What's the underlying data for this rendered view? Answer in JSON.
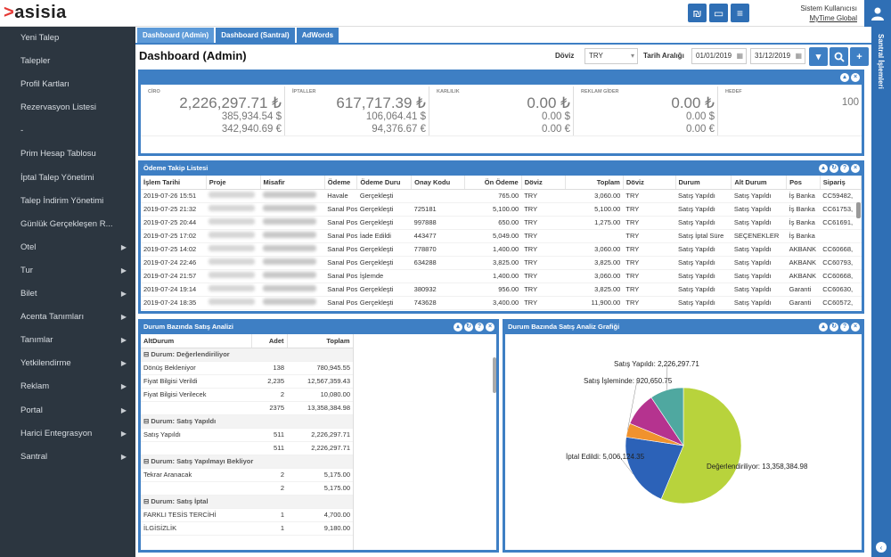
{
  "brand": {
    "chevron": ">",
    "name": "asisia"
  },
  "user": {
    "line1": "Sistem Kullanıcısı",
    "line2": "MyTime Global"
  },
  "top_icons": [
    "currency-icon",
    "monitor-icon",
    "menu-icon"
  ],
  "sidebar": {
    "items": [
      {
        "label": "Yeni Talep",
        "arrow": false
      },
      {
        "label": "Talepler",
        "arrow": false
      },
      {
        "label": "Profil Kartları",
        "arrow": false
      },
      {
        "label": "Rezervasyon Listesi",
        "arrow": false
      },
      {
        "label": "-",
        "arrow": false
      },
      {
        "label": "Prim Hesap Tablosu",
        "arrow": false
      },
      {
        "label": "İptal Talep Yönetimi",
        "arrow": false
      },
      {
        "label": "Talep İndirim Yönetimi",
        "arrow": false
      },
      {
        "label": "Günlük Gerçekleşen R...",
        "arrow": false
      },
      {
        "label": "Otel",
        "arrow": true
      },
      {
        "label": "Tur",
        "arrow": true
      },
      {
        "label": "Bilet",
        "arrow": true
      },
      {
        "label": "Acenta Tanımları",
        "arrow": true
      },
      {
        "label": "Tanımlar",
        "arrow": true
      },
      {
        "label": "Yetkilendirme",
        "arrow": true
      },
      {
        "label": "Reklam",
        "arrow": true
      },
      {
        "label": "Portal",
        "arrow": true
      },
      {
        "label": "Harici Entegrasyon",
        "arrow": true
      },
      {
        "label": "Santral",
        "arrow": true
      }
    ]
  },
  "right_strip": {
    "label": "Santral İşlemleri"
  },
  "tabs": [
    {
      "label": "Dashboard (Admin)",
      "active": true
    },
    {
      "label": "Dashboard (Santral)",
      "active": false
    },
    {
      "label": "AdWords",
      "active": false
    }
  ],
  "page_title": "Dashboard (Admin)",
  "filters": {
    "currency_label": "Döviz",
    "currency_value": "TRY",
    "date_label": "Tarih Aralığı",
    "date_from": "01/01/2019",
    "date_to": "31/12/2019"
  },
  "kpis": [
    {
      "label": "CİRO",
      "v1": "2,226,297.71 ₺",
      "v2": "385,934.54 $",
      "v3": "342,940.69 €"
    },
    {
      "label": "İPTALLER",
      "v1": "617,717.39 ₺",
      "v2": "106,064.41 $",
      "v3": "94,376.67 €"
    },
    {
      "label": "KARLILIK",
      "v1": "0.00 ₺",
      "v2": "0.00 $",
      "v3": "0.00 €"
    },
    {
      "label": "REKLAM GİDER",
      "v1": "0.00 ₺",
      "v2": "0.00 $",
      "v3": "0.00 €"
    },
    {
      "label": "HEDEF",
      "v1": "",
      "v2": "100",
      "v3": ""
    }
  ],
  "payments": {
    "title": "Ödeme Takip Listesi",
    "columns": [
      "İşlem Tarihi",
      "Proje",
      "Misafir",
      "Ödeme",
      "Ödeme Duru",
      "Onay Kodu",
      "Ön Ödeme",
      "Döviz",
      "Toplam",
      "Döviz",
      "Durum",
      "Alt Durum",
      "Pos",
      "Sipariş"
    ],
    "rows": [
      [
        "2019-07-26 15:51",
        "",
        "",
        "Havale",
        "Gerçekleşti",
        "",
        "765.00",
        "TRY",
        "3,060.00",
        "TRY",
        "Satış Yapıldı",
        "Satış Yapıldı",
        "İş Banka",
        "CC59482,"
      ],
      [
        "2019-07-25 21:32",
        "",
        "",
        "Sanal Pos",
        "Gerçekleşti",
        "725181",
        "5,100.00",
        "TRY",
        "5,100.00",
        "TRY",
        "Satış Yapıldı",
        "Satış Yapıldı",
        "İş Banka",
        "CC61753,"
      ],
      [
        "2019-07-25 20:44",
        "",
        "",
        "Sanal Pos",
        "Gerçekleşti",
        "997888",
        "650.00",
        "TRY",
        "1,275.00",
        "TRY",
        "Satış Yapıldı",
        "Satış Yapıldı",
        "İş Banka",
        "CC61691,"
      ],
      [
        "2019-07-25 17:02",
        "",
        "",
        "Sanal Pos",
        "İade Edildi",
        "443477",
        "5,049.00",
        "TRY",
        "",
        "TRY",
        "Satış İptal Süre",
        "SEÇENEKLER",
        "İş Banka",
        ""
      ],
      [
        "2019-07-25 14:02",
        "",
        "",
        "Sanal Pos",
        "Gerçekleşti",
        "778870",
        "1,400.00",
        "TRY",
        "3,060.00",
        "TRY",
        "Satış Yapıldı",
        "Satış Yapıldı",
        "AKBANK",
        "CC60668,"
      ],
      [
        "2019-07-24 22:46",
        "",
        "",
        "Sanal Pos",
        "Gerçekleşti",
        "634288",
        "3,825.00",
        "TRY",
        "3,825.00",
        "TRY",
        "Satış Yapıldı",
        "Satış Yapıldı",
        "AKBANK",
        "CC60793,"
      ],
      [
        "2019-07-24 21:57",
        "",
        "",
        "Sanal Pos",
        "İşlemde",
        "",
        "1,400.00",
        "TRY",
        "3,060.00",
        "TRY",
        "Satış Yapıldı",
        "Satış Yapıldı",
        "AKBANK",
        "CC60668,"
      ],
      [
        "2019-07-24 19:14",
        "",
        "",
        "Sanal Pos",
        "Gerçekleşti",
        "380932",
        "956.00",
        "TRY",
        "3,825.00",
        "TRY",
        "Satış Yapıldı",
        "Satış Yapıldı",
        "Garanti",
        "CC60630,"
      ],
      [
        "2019-07-24 18:35",
        "",
        "",
        "Sanal Pos",
        "Gerçekleşti",
        "743628",
        "3,400.00",
        "TRY",
        "11,900.00",
        "TRY",
        "Satış Yapıldı",
        "Satış Yapıldı",
        "Garanti",
        "CC60572,"
      ]
    ]
  },
  "analysis": {
    "title": "Durum Bazında Satış Analizi",
    "columns": [
      "AltDurum",
      "Adet",
      "Toplam"
    ],
    "groups": [
      {
        "label": "Durum: Değerlendiriliyor",
        "rows": [
          [
            "Dönüş Bekleniyor",
            "138",
            "780,945.55"
          ],
          [
            "Fiyat Bilgisi Verildi",
            "2,235",
            "12,567,359.43"
          ],
          [
            "Fiyat Bilgisi Verilecek",
            "2",
            "10,080.00"
          ]
        ],
        "sum": [
          "2375",
          "13,358,384.98"
        ]
      },
      {
        "label": "Durum: Satış Yapıldı",
        "rows": [
          [
            "Satış Yapıldı",
            "511",
            "2,226,297.71"
          ]
        ],
        "sum": [
          "511",
          "2,226,297.71"
        ]
      },
      {
        "label": "Durum: Satış Yapılmayı Bekliyor",
        "rows": [
          [
            "Tekrar Aranacak",
            "2",
            "5,175.00"
          ]
        ],
        "sum": [
          "2",
          "5,175.00"
        ]
      },
      {
        "label": "Durum: Satış İptal",
        "rows": [
          [
            "FARKLI TESİS TERCİHİ",
            "1",
            "4,700.00"
          ],
          [
            "İLGİSİZLİK",
            "1",
            "9,180.00"
          ]
        ],
        "sum": null
      }
    ]
  },
  "pie_panel_title": "Durum Bazında Satış Analiz Grafiği",
  "chart_data": {
    "type": "pie",
    "title": "",
    "slices": [
      {
        "label": "Değerlendiriliyor",
        "value": 13358384.98,
        "display": "Değerlendiriliyor: 13,358,384.98",
        "color": "#b8d33c"
      },
      {
        "label": "İptal Edildi",
        "value": 5006124.35,
        "display": "İptal Edildi: 5,006,124.35",
        "color": "#2c62b8"
      },
      {
        "label": "Satış İşleminde",
        "value": 920650.75,
        "display": "Satış İşleminde: 920,650.75",
        "color": "#f0922e"
      },
      {
        "label": "Other",
        "value": 2226297.71,
        "display": "",
        "color": "#b5338f"
      },
      {
        "label": "Satış Yapıldı",
        "value": 2226297.71,
        "display": "Satış Yapıldı: 2,226,297.71",
        "color": "#4fa8a0"
      }
    ]
  }
}
